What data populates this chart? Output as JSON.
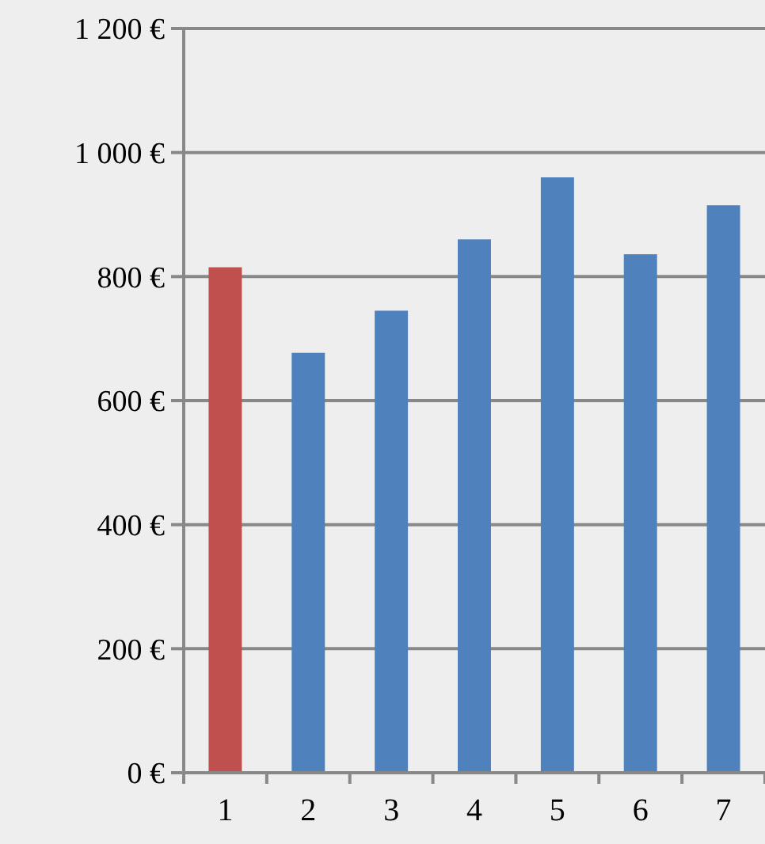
{
  "chart_data": {
    "type": "bar",
    "categories": [
      "1",
      "2",
      "3",
      "4",
      "5",
      "6",
      "7"
    ],
    "values": [
      815,
      677,
      745,
      860,
      960,
      836,
      915
    ],
    "colors": [
      "#c0504d",
      "#4f81bd",
      "#4f81bd",
      "#4f81bd",
      "#4f81bd",
      "#4f81bd",
      "#4f81bd"
    ],
    "ylim": [
      0,
      1200
    ],
    "yticks": [
      {
        "value": 0,
        "label": "0 €"
      },
      {
        "value": 200,
        "label": "200 €"
      },
      {
        "value": 400,
        "label": "400 €"
      },
      {
        "value": 600,
        "label": "600 €"
      },
      {
        "value": 800,
        "label": "800 €"
      },
      {
        "value": 1000,
        "label": "1 000 €"
      },
      {
        "value": 1200,
        "label": "1 200 €"
      }
    ],
    "grid": "y"
  }
}
